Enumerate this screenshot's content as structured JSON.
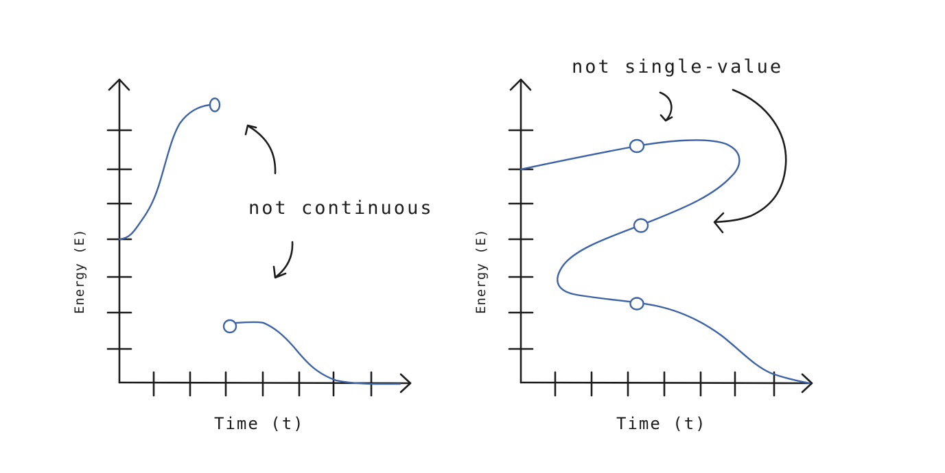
{
  "diagram": {
    "panels": [
      {
        "id": "left",
        "xlabel": "Time (t)",
        "ylabel": "Energy (E)",
        "annotation": "not continuous",
        "open_circles": 2
      },
      {
        "id": "right",
        "xlabel": "Time (t)",
        "ylabel": "Energy (E)",
        "annotation": "not single-value",
        "open_circles": 3
      }
    ]
  },
  "colors": {
    "ink": "#1c1c1c",
    "curve": "#3d63a6",
    "background": "#ffffff"
  }
}
